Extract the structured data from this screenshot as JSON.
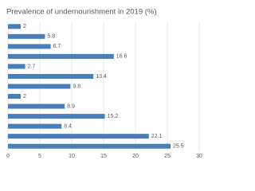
{
  "chart_data": {
    "type": "bar",
    "orientation": "horizontal",
    "title": "Prevalence of undernourishment in 2019 (%)",
    "categories": [
      null,
      null,
      null,
      null,
      null,
      null,
      null,
      null,
      null,
      null,
      null,
      null,
      null
    ],
    "values": [
      2,
      5.8,
      6.7,
      16.6,
      2.7,
      13.4,
      9.8,
      2,
      8.9,
      15.2,
      8.4,
      22.1,
      25.5
    ],
    "color": "#4a7ebb",
    "xlim": [
      0,
      30
    ],
    "xticks": [
      0,
      5,
      10,
      15,
      20,
      25,
      30
    ],
    "grid": true
  }
}
